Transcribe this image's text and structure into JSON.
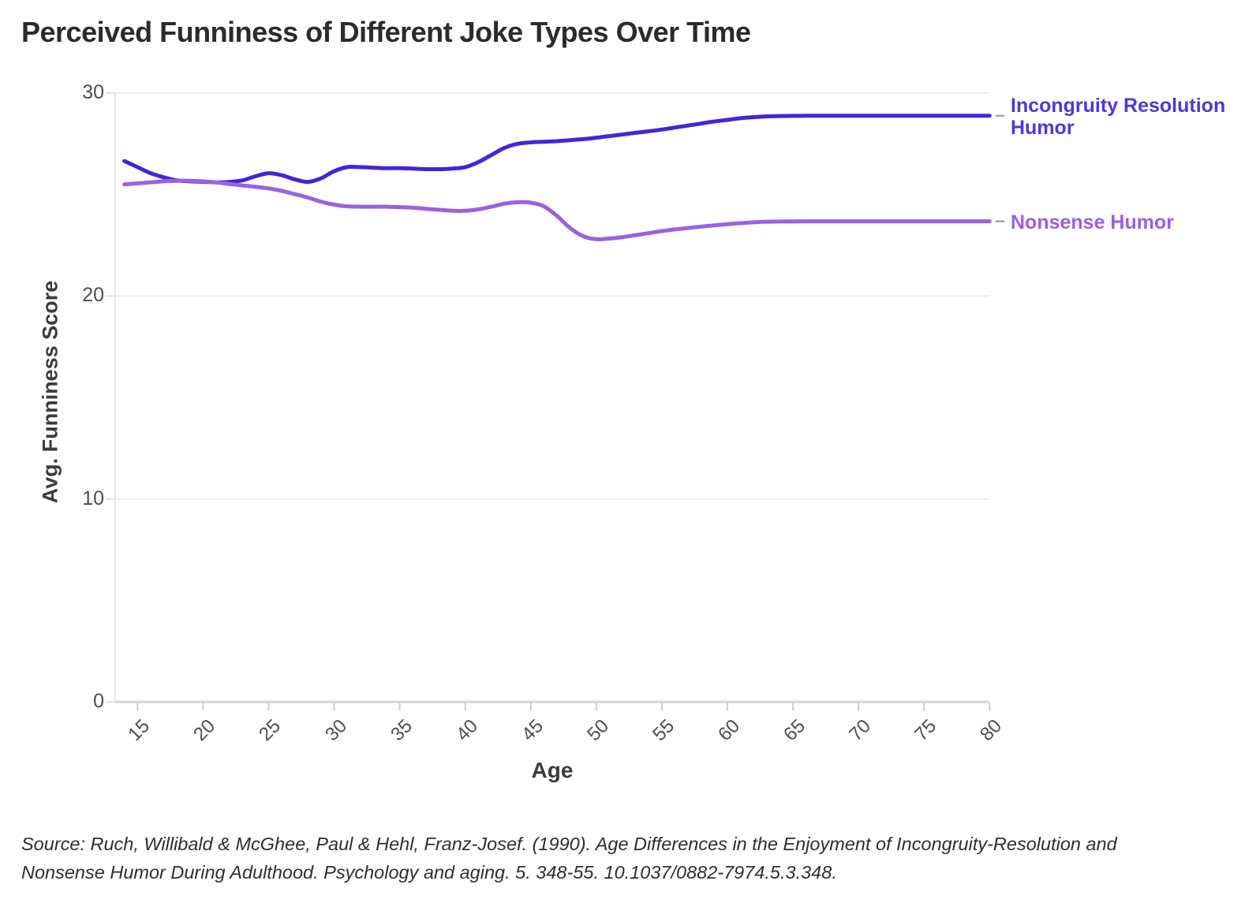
{
  "title": "Perceived Funniness of Different Joke Types Over Time",
  "source_line1": "Source: Ruch, Willibald & McGhee, Paul & Hehl, Franz-Josef. (1990). Age Differences in the Enjoyment of Incongruity-Resolution and",
  "source_line2": "Nonsense Humor During Adulthood. Psychology and aging. 5. 348-55. 10.1037/0882-7974.5.3.348.",
  "colors": {
    "incongruity_line": "#4126d9",
    "incongruity_label": "#4c38e0",
    "nonsense_line": "#9c61e2",
    "nonsense_label": "#9e5ce4",
    "leader_dash": "#a3a3a3",
    "gridline": "#ececec",
    "baseline": "#d5d5d5",
    "axis_line": "#e8e8e8",
    "tick_mark": "#cfcfcf"
  },
  "chart_data": {
    "type": "line",
    "title": "Perceived Funniness of Different Joke Types Over Time",
    "xlabel": "Age",
    "ylabel": "Avg. Funniness Score",
    "xlim": [
      14,
      80
    ],
    "ylim": [
      0,
      30
    ],
    "x_ticks": [
      15,
      20,
      25,
      30,
      35,
      40,
      45,
      50,
      55,
      60,
      65,
      70,
      75,
      80
    ],
    "y_ticks": [
      0,
      10,
      20,
      30
    ],
    "grid": "horizontal",
    "legend_position": "right-edge-labels",
    "series": [
      {
        "name": "Incongruity Resolution Humor",
        "color": "#4126d9",
        "label_color": "#4c38e0",
        "points": [
          [
            14,
            26.65
          ],
          [
            15,
            26.35
          ],
          [
            16,
            26.05
          ],
          [
            17,
            25.85
          ],
          [
            18,
            25.7
          ],
          [
            19,
            25.65
          ],
          [
            20,
            25.63
          ],
          [
            21,
            25.6
          ],
          [
            22,
            25.62
          ],
          [
            23,
            25.7
          ],
          [
            24,
            25.9
          ],
          [
            25,
            26.05
          ],
          [
            26,
            25.95
          ],
          [
            27,
            25.75
          ],
          [
            28,
            25.62
          ],
          [
            29,
            25.8
          ],
          [
            30,
            26.15
          ],
          [
            31,
            26.35
          ],
          [
            32,
            26.35
          ],
          [
            33,
            26.32
          ],
          [
            34,
            26.3
          ],
          [
            35,
            26.3
          ],
          [
            36,
            26.28
          ],
          [
            37,
            26.25
          ],
          [
            38,
            26.25
          ],
          [
            39,
            26.28
          ],
          [
            40,
            26.35
          ],
          [
            41,
            26.6
          ],
          [
            42,
            26.95
          ],
          [
            43,
            27.3
          ],
          [
            44,
            27.5
          ],
          [
            45,
            27.57
          ],
          [
            46,
            27.6
          ],
          [
            47,
            27.63
          ],
          [
            48,
            27.68
          ],
          [
            49,
            27.73
          ],
          [
            50,
            27.8
          ],
          [
            51,
            27.88
          ],
          [
            52,
            27.96
          ],
          [
            53,
            28.04
          ],
          [
            54,
            28.12
          ],
          [
            55,
            28.2
          ],
          [
            56,
            28.3
          ],
          [
            57,
            28.4
          ],
          [
            58,
            28.5
          ],
          [
            59,
            28.6
          ],
          [
            60,
            28.68
          ],
          [
            61,
            28.76
          ],
          [
            62,
            28.81
          ],
          [
            63,
            28.85
          ],
          [
            64,
            28.87
          ],
          [
            66,
            28.88
          ],
          [
            68,
            28.88
          ],
          [
            70,
            28.88
          ],
          [
            72,
            28.88
          ],
          [
            74,
            28.88
          ],
          [
            76,
            28.88
          ],
          [
            78,
            28.88
          ],
          [
            80,
            28.88
          ]
        ]
      },
      {
        "name": "Nonsense Humor",
        "color": "#9c61e2",
        "label_color": "#9e5ce4",
        "points": [
          [
            14,
            25.5
          ],
          [
            15,
            25.55
          ],
          [
            16,
            25.6
          ],
          [
            17,
            25.65
          ],
          [
            18,
            25.68
          ],
          [
            19,
            25.68
          ],
          [
            20,
            25.65
          ],
          [
            21,
            25.6
          ],
          [
            22,
            25.52
          ],
          [
            23,
            25.45
          ],
          [
            24,
            25.38
          ],
          [
            25,
            25.3
          ],
          [
            26,
            25.18
          ],
          [
            27,
            25.02
          ],
          [
            28,
            24.85
          ],
          [
            29,
            24.65
          ],
          [
            30,
            24.5
          ],
          [
            31,
            24.42
          ],
          [
            32,
            24.4
          ],
          [
            33,
            24.4
          ],
          [
            34,
            24.4
          ],
          [
            35,
            24.38
          ],
          [
            36,
            24.35
          ],
          [
            37,
            24.3
          ],
          [
            38,
            24.25
          ],
          [
            39,
            24.2
          ],
          [
            40,
            24.2
          ],
          [
            41,
            24.27
          ],
          [
            42,
            24.4
          ],
          [
            43,
            24.55
          ],
          [
            44,
            24.62
          ],
          [
            45,
            24.6
          ],
          [
            46,
            24.42
          ],
          [
            47,
            23.95
          ],
          [
            48,
            23.35
          ],
          [
            49,
            22.95
          ],
          [
            50,
            22.8
          ],
          [
            51,
            22.83
          ],
          [
            52,
            22.9
          ],
          [
            53,
            23.0
          ],
          [
            54,
            23.1
          ],
          [
            55,
            23.2
          ],
          [
            56,
            23.28
          ],
          [
            57,
            23.35
          ],
          [
            58,
            23.42
          ],
          [
            59,
            23.48
          ],
          [
            60,
            23.54
          ],
          [
            61,
            23.59
          ],
          [
            62,
            23.63
          ],
          [
            63,
            23.66
          ],
          [
            64,
            23.67
          ],
          [
            66,
            23.68
          ],
          [
            68,
            23.68
          ],
          [
            70,
            23.68
          ],
          [
            72,
            23.68
          ],
          [
            74,
            23.68
          ],
          [
            76,
            23.68
          ],
          [
            78,
            23.68
          ],
          [
            80,
            23.68
          ]
        ]
      }
    ]
  }
}
